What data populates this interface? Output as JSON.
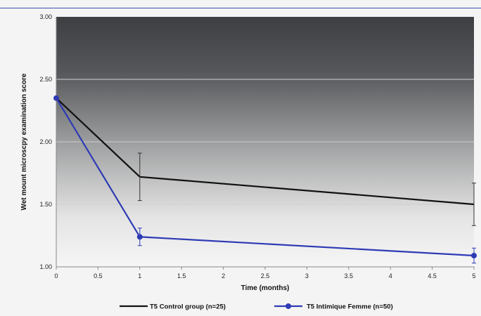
{
  "chart_data": {
    "type": "line",
    "xlabel": "Time (months)",
    "ylabel": "Wet mount microscpy examination score",
    "ylim": [
      1.0,
      3.0
    ],
    "xlim": [
      0,
      5
    ],
    "y_ticks": [
      "1.00",
      "1.50",
      "2.00",
      "2.50",
      "3.00"
    ],
    "x_ticks": [
      "0",
      "0.5",
      "1",
      "1.5",
      "2",
      "2.5",
      "3",
      "3.5",
      "4",
      "4.5",
      "5"
    ],
    "grid": true,
    "legend_position": "bottom",
    "series": [
      {
        "name": "T5 Control group (n=25)",
        "color": "#111111",
        "marker": "none",
        "points": [
          {
            "x": 0,
            "y": 2.35,
            "err": 0.0
          },
          {
            "x": 1,
            "y": 1.72,
            "err": 0.19
          },
          {
            "x": 5,
            "y": 1.5,
            "err": 0.17
          }
        ]
      },
      {
        "name": "T5 Intimique Femme (n=50)",
        "color": "#2e3bb5",
        "marker": "circle",
        "points": [
          {
            "x": 0,
            "y": 2.35,
            "err": 0.0
          },
          {
            "x": 1,
            "y": 1.24,
            "err": 0.07
          },
          {
            "x": 5,
            "y": 1.09,
            "err": 0.06
          }
        ]
      }
    ]
  }
}
